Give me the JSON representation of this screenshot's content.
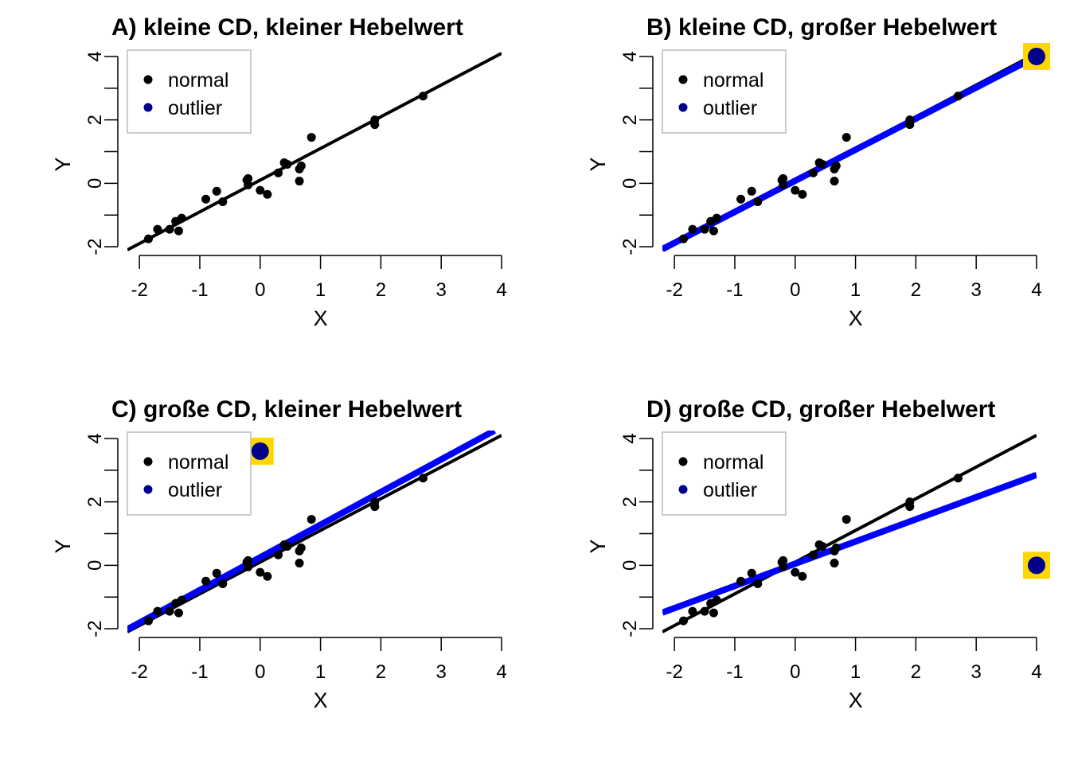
{
  "colors": {
    "normal_points": "#000000",
    "normal_line": "#000000",
    "outlier_point": "#00008B",
    "outlier_line": "#0000FF",
    "outlier_highlight": "#FFD700",
    "legend_outlier_dot": "#00008B"
  },
  "legend": {
    "items": [
      {
        "label": "normal",
        "color": "#000000"
      },
      {
        "label": "outlier",
        "color": "#00008B"
      }
    ],
    "position": "top-left"
  },
  "chart_data": [
    {
      "type": "scatter",
      "title": "A)  kleine CD, kleiner Hebelwert",
      "xlabel": "X",
      "ylabel": "Y",
      "xlim": [
        -2.2,
        4
      ],
      "ylim": [
        -2.2,
        4.2
      ],
      "xticks": [
        -2,
        -1,
        0,
        1,
        2,
        3,
        4
      ],
      "yticks": [
        -2,
        0,
        2,
        4
      ],
      "grid": false,
      "series": [
        {
          "name": "normal",
          "points": [
            [
              -1.85,
              -1.75
            ],
            [
              -1.7,
              -1.45
            ],
            [
              -1.5,
              -1.45
            ],
            [
              -1.4,
              -1.2
            ],
            [
              -1.35,
              -1.5
            ],
            [
              -1.3,
              -1.1
            ],
            [
              -0.9,
              -0.5
            ],
            [
              -0.72,
              -0.25
            ],
            [
              -0.62,
              -0.58
            ],
            [
              -0.22,
              0.1
            ],
            [
              -0.2,
              0.15
            ],
            [
              -0.2,
              -0.05
            ],
            [
              0.0,
              -0.22
            ],
            [
              0.12,
              -0.35
            ],
            [
              0.3,
              0.33
            ],
            [
              0.4,
              0.65
            ],
            [
              0.45,
              0.6
            ],
            [
              0.65,
              0.45
            ],
            [
              0.68,
              0.55
            ],
            [
              0.65,
              0.07
            ],
            [
              0.85,
              1.45
            ],
            [
              1.9,
              1.85
            ],
            [
              1.9,
              2.0
            ],
            [
              2.7,
              2.75
            ]
          ]
        },
        {
          "name": "outlier",
          "points": []
        }
      ],
      "fit_lines": [
        {
          "name": "normal",
          "intercept": 0.1,
          "slope": 1.0
        }
      ]
    },
    {
      "type": "scatter",
      "title": "B)  kleine CD, großer Hebelwert",
      "xlabel": "X",
      "ylabel": "Y",
      "xlim": [
        -2.2,
        4
      ],
      "ylim": [
        -2.2,
        4.2
      ],
      "xticks": [
        -2,
        -1,
        0,
        1,
        2,
        3,
        4
      ],
      "yticks": [
        -2,
        0,
        2,
        4
      ],
      "grid": false,
      "series": [
        {
          "name": "normal",
          "points": [
            [
              -1.85,
              -1.75
            ],
            [
              -1.7,
              -1.45
            ],
            [
              -1.5,
              -1.45
            ],
            [
              -1.4,
              -1.2
            ],
            [
              -1.35,
              -1.5
            ],
            [
              -1.3,
              -1.1
            ],
            [
              -0.9,
              -0.5
            ],
            [
              -0.72,
              -0.25
            ],
            [
              -0.62,
              -0.58
            ],
            [
              -0.22,
              0.1
            ],
            [
              -0.2,
              0.15
            ],
            [
              -0.2,
              -0.05
            ],
            [
              0.0,
              -0.22
            ],
            [
              0.12,
              -0.35
            ],
            [
              0.3,
              0.33
            ],
            [
              0.4,
              0.65
            ],
            [
              0.45,
              0.6
            ],
            [
              0.65,
              0.45
            ],
            [
              0.68,
              0.55
            ],
            [
              0.65,
              0.07
            ],
            [
              0.85,
              1.45
            ],
            [
              1.9,
              1.85
            ],
            [
              1.9,
              2.0
            ],
            [
              2.7,
              2.75
            ]
          ]
        },
        {
          "name": "outlier",
          "points": [
            [
              4.0,
              4.0
            ]
          ]
        }
      ],
      "fit_lines": [
        {
          "name": "normal",
          "intercept": 0.1,
          "slope": 1.0
        },
        {
          "name": "outlier",
          "intercept": 0.08,
          "slope": 0.98
        }
      ]
    },
    {
      "type": "scatter",
      "title": "C)  große CD, kleiner Hebelwert",
      "xlabel": "X",
      "ylabel": "Y",
      "xlim": [
        -2.2,
        4
      ],
      "ylim": [
        -2.2,
        4.2
      ],
      "xticks": [
        -2,
        -1,
        0,
        1,
        2,
        3,
        4
      ],
      "yticks": [
        -2,
        0,
        2,
        4
      ],
      "grid": false,
      "series": [
        {
          "name": "normal",
          "points": [
            [
              -1.85,
              -1.75
            ],
            [
              -1.7,
              -1.45
            ],
            [
              -1.5,
              -1.45
            ],
            [
              -1.4,
              -1.2
            ],
            [
              -1.35,
              -1.5
            ],
            [
              -1.3,
              -1.1
            ],
            [
              -0.9,
              -0.5
            ],
            [
              -0.72,
              -0.25
            ],
            [
              -0.62,
              -0.58
            ],
            [
              -0.22,
              0.1
            ],
            [
              -0.2,
              0.15
            ],
            [
              -0.2,
              -0.05
            ],
            [
              0.0,
              -0.22
            ],
            [
              0.12,
              -0.35
            ],
            [
              0.3,
              0.33
            ],
            [
              0.4,
              0.65
            ],
            [
              0.45,
              0.6
            ],
            [
              0.65,
              0.45
            ],
            [
              0.68,
              0.55
            ],
            [
              0.65,
              0.07
            ],
            [
              0.85,
              1.45
            ],
            [
              1.9,
              1.85
            ],
            [
              1.9,
              2.0
            ],
            [
              2.7,
              2.75
            ]
          ]
        },
        {
          "name": "outlier",
          "points": [
            [
              0.0,
              3.6
            ]
          ]
        }
      ],
      "fit_lines": [
        {
          "name": "normal",
          "intercept": 0.1,
          "slope": 1.0
        },
        {
          "name": "outlier",
          "intercept": 0.25,
          "slope": 1.03
        }
      ]
    },
    {
      "type": "scatter",
      "title": "D)  große CD, großer Hebelwert",
      "xlabel": "X",
      "ylabel": "Y",
      "xlim": [
        -2.2,
        4
      ],
      "ylim": [
        -2.2,
        4.2
      ],
      "xticks": [
        -2,
        -1,
        0,
        1,
        2,
        3,
        4
      ],
      "yticks": [
        -2,
        0,
        2,
        4
      ],
      "grid": false,
      "series": [
        {
          "name": "normal",
          "points": [
            [
              -1.85,
              -1.75
            ],
            [
              -1.7,
              -1.45
            ],
            [
              -1.5,
              -1.45
            ],
            [
              -1.4,
              -1.2
            ],
            [
              -1.35,
              -1.5
            ],
            [
              -1.3,
              -1.1
            ],
            [
              -0.9,
              -0.5
            ],
            [
              -0.72,
              -0.25
            ],
            [
              -0.62,
              -0.58
            ],
            [
              -0.22,
              0.1
            ],
            [
              -0.2,
              0.15
            ],
            [
              -0.2,
              -0.05
            ],
            [
              0.0,
              -0.22
            ],
            [
              0.12,
              -0.35
            ],
            [
              0.3,
              0.33
            ],
            [
              0.4,
              0.65
            ],
            [
              0.45,
              0.6
            ],
            [
              0.65,
              0.45
            ],
            [
              0.68,
              0.55
            ],
            [
              0.65,
              0.07
            ],
            [
              0.85,
              1.45
            ],
            [
              1.9,
              1.85
            ],
            [
              1.9,
              2.0
            ],
            [
              2.7,
              2.75
            ]
          ]
        },
        {
          "name": "outlier",
          "points": [
            [
              4.0,
              0.0
            ]
          ]
        }
      ],
      "fit_lines": [
        {
          "name": "normal",
          "intercept": 0.1,
          "slope": 1.0
        },
        {
          "name": "outlier",
          "intercept": 0.05,
          "slope": 0.7
        }
      ]
    }
  ]
}
